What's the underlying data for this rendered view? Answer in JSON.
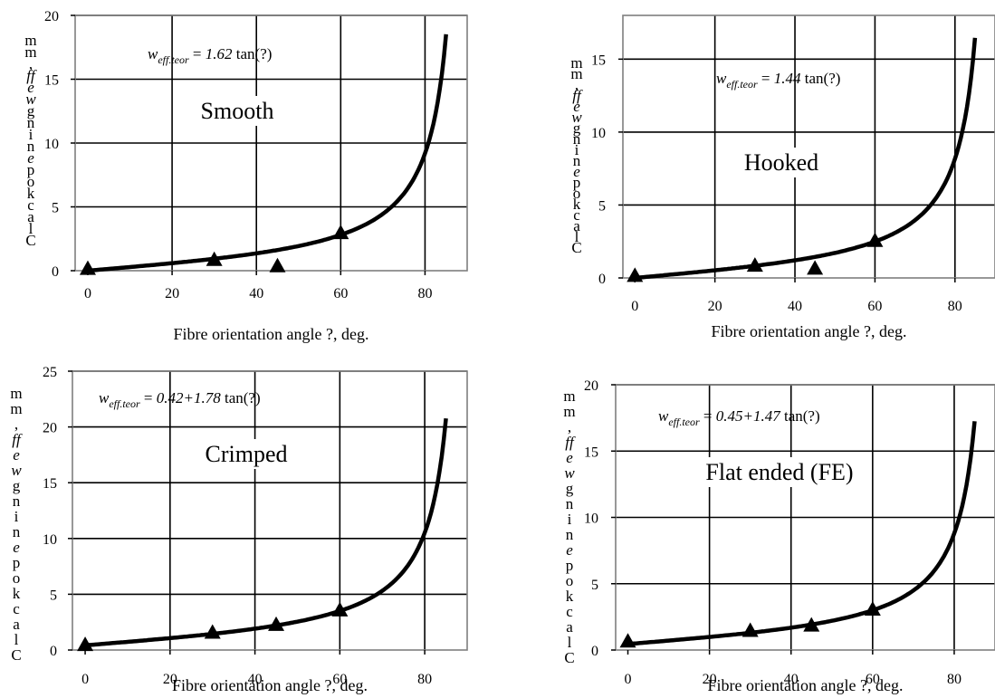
{
  "chart_data": [
    {
      "type": "line",
      "panel_label": "Smooth",
      "equation": {
        "symbol": "w",
        "subscript": "eff.teor",
        "equals": " = ",
        "coef": "1.62",
        "func": " tan(?)"
      },
      "xlabel": "Fibre orientation angle ?, deg.",
      "ylabel": "C a l c u l a t e d   w e f f ,   m m",
      "ylabel_chars": [
        "m",
        "m",
        ",",
        "ff",
        "e",
        "w",
        "g",
        "n",
        "i",
        "n",
        "e",
        "p",
        "o",
        "k",
        "c",
        "a",
        "l",
        "C"
      ],
      "xlim": [
        -3,
        90
      ],
      "ylim": [
        0,
        20
      ],
      "xticks": [
        "0",
        "20",
        "40",
        "60",
        "80"
      ],
      "xtick_values": [
        0,
        20,
        40,
        60,
        80
      ],
      "yticks": [
        "0",
        "5",
        "10",
        "15",
        "20"
      ],
      "ytick_values": [
        0,
        5,
        10,
        15,
        20
      ],
      "grid": true,
      "series": [
        {
          "kind": "curve",
          "intercept": 0,
          "coefficient": 1.62,
          "x_max": 85
        },
        {
          "kind": "markers",
          "marker": "triangle",
          "x": [
            0,
            30,
            45,
            60
          ],
          "y": [
            0.1,
            0.8,
            0.3,
            2.9
          ]
        }
      ]
    },
    {
      "type": "line",
      "panel_label": "Hooked",
      "equation": {
        "symbol": "w",
        "subscript": "eff.teor",
        "equals": " = ",
        "coef": "1.44",
        "func": " tan(?)"
      },
      "xlabel": "Fibre orientation angle ?, deg.",
      "ylabel": "C a l c u l a t e d   w e f f ,   m m",
      "ylabel_chars": [
        "m",
        "m",
        ",",
        "ff",
        "e",
        "w",
        "g",
        "n",
        "i",
        "n",
        "e",
        "p",
        "o",
        "k",
        "c",
        "a",
        "l",
        "C"
      ],
      "xlim": [
        -3,
        90
      ],
      "ylim": [
        0,
        18
      ],
      "xticks": [
        "0",
        "20",
        "40",
        "60",
        "80"
      ],
      "xtick_values": [
        0,
        20,
        40,
        60,
        80
      ],
      "yticks": [
        "0",
        "5",
        "10",
        "15"
      ],
      "ytick_values": [
        0,
        5,
        10,
        15
      ],
      "grid": true,
      "series": [
        {
          "kind": "curve",
          "intercept": 0,
          "coefficient": 1.44,
          "x_max": 85
        },
        {
          "kind": "markers",
          "marker": "triangle",
          "x": [
            0,
            30,
            45,
            60
          ],
          "y": [
            0.1,
            0.8,
            0.6,
            2.5
          ]
        }
      ]
    },
    {
      "type": "line",
      "panel_label": "Crimped",
      "equation": {
        "symbol": "w",
        "subscript": "eff.teor",
        "equals": " = ",
        "coef": "0.42+1.78",
        "func": " tan(?)"
      },
      "xlabel": "Fibre orientation angle ?, deg.",
      "ylabel": "C a l c u l a t e d   w e f f ,   m m",
      "ylabel_chars": [
        "m",
        "m",
        ",",
        "ff",
        "e",
        "w",
        "g",
        "n",
        "i",
        "n",
        "e",
        "p",
        "o",
        "k",
        "c",
        "a",
        "l",
        "C"
      ],
      "xlim": [
        -3,
        90
      ],
      "ylim": [
        0,
        25
      ],
      "xticks": [
        "0",
        "20",
        "40",
        "60",
        "80"
      ],
      "xtick_values": [
        0,
        20,
        40,
        60,
        80
      ],
      "yticks": [
        "0",
        "5",
        "10",
        "15",
        "20",
        "25"
      ],
      "ytick_values": [
        0,
        5,
        10,
        15,
        20,
        25
      ],
      "grid": true,
      "series": [
        {
          "kind": "curve",
          "intercept": 0.42,
          "coefficient": 1.78,
          "x_max": 85
        },
        {
          "kind": "markers",
          "marker": "triangle",
          "x": [
            0,
            30,
            45,
            60
          ],
          "y": [
            0.4,
            1.5,
            2.2,
            3.5
          ]
        }
      ]
    },
    {
      "type": "line",
      "panel_label": "Flat ended (FE)",
      "equation": {
        "symbol": "w",
        "subscript": "eff.teor",
        "equals": " = ",
        "coef": "0.45+1.47",
        "func": " tan(?)"
      },
      "xlabel": "Fibre orientation angle ?, deg.",
      "ylabel": "C a l c u l a t e d   w e f f ,   m m",
      "ylabel_chars": [
        "m",
        "m",
        ",",
        "ff",
        "e",
        "w",
        "g",
        "n",
        "i",
        "n",
        "e",
        "p",
        "o",
        "k",
        "c",
        "a",
        "l",
        "C"
      ],
      "xlim": [
        -3,
        90
      ],
      "ylim": [
        0,
        20
      ],
      "xticks": [
        "0",
        "20",
        "40",
        "60",
        "80"
      ],
      "xtick_values": [
        0,
        20,
        40,
        60,
        80
      ],
      "yticks": [
        "0",
        "5",
        "10",
        "15",
        "20"
      ],
      "ytick_values": [
        0,
        5,
        10,
        15,
        20
      ],
      "grid": true,
      "series": [
        {
          "kind": "curve",
          "intercept": 0.45,
          "coefficient": 1.47,
          "x_max": 85
        },
        {
          "kind": "markers",
          "marker": "triangle",
          "x": [
            0,
            30,
            45,
            60
          ],
          "y": [
            0.6,
            1.4,
            1.8,
            3.0
          ]
        }
      ]
    }
  ]
}
